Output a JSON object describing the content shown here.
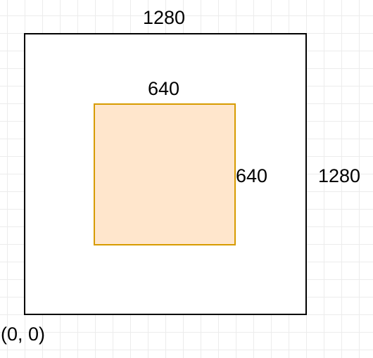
{
  "diagram": {
    "outer_square": {
      "width_label": "1280",
      "height_label": "1280",
      "fill_color": "#ffffff",
      "stroke_color": "#000000"
    },
    "inner_square": {
      "width_label": "640",
      "height_label": "640",
      "fill_color": "#ffe6cc",
      "stroke_color": "#d79b00"
    },
    "origin_label": "(0, 0)"
  }
}
